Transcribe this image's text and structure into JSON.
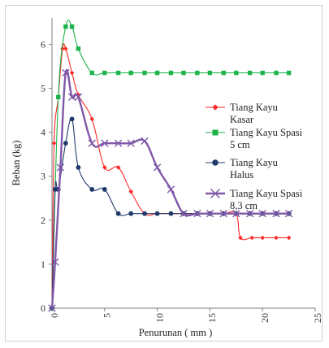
{
  "chart_data": {
    "type": "line",
    "xlabel": "Penurunan ( mm )",
    "ylabel": "Beban (kg)",
    "xlim": [
      0,
      25
    ],
    "ylim": [
      0,
      6.6
    ],
    "xticks": [
      0,
      5,
      10,
      15,
      20,
      25
    ],
    "yticks": [
      0,
      1,
      2,
      3,
      4,
      5,
      6
    ],
    "grid": false,
    "legend_position": "right",
    "series": [
      {
        "name": "Tiang Kayu Kasar",
        "color": "#ff2a2a",
        "marker": "diamond",
        "x": [
          0,
          0.2,
          0.6,
          1.0,
          1.3,
          1.9,
          2.5,
          3.8,
          5.0,
          6.3,
          7.5,
          8.8,
          10.0,
          11.3,
          12.5,
          13.8,
          15.0,
          16.3,
          17.5,
          17.9,
          19.0,
          20.0,
          21.3,
          22.5
        ],
        "y": [
          0,
          3.75,
          4.8,
          5.9,
          5.9,
          5.35,
          4.85,
          4.3,
          3.2,
          3.2,
          2.65,
          2.15,
          2.15,
          2.15,
          2.15,
          2.15,
          2.15,
          2.15,
          2.15,
          1.6,
          1.6,
          1.6,
          1.6,
          1.6
        ]
      },
      {
        "name": "Tiang Kayu Spasi 5 cm",
        "color": "#1db34a",
        "marker": "square",
        "x": [
          0,
          0.6,
          1.3,
          1.9,
          2.5,
          3.8,
          5.0,
          6.3,
          7.5,
          8.8,
          10.0,
          11.3,
          12.5,
          13.8,
          15.0,
          16.3,
          17.5,
          18.8,
          20.0,
          21.3,
          22.5
        ],
        "y": [
          0,
          4.8,
          6.4,
          6.4,
          5.9,
          5.35,
          5.35,
          5.35,
          5.35,
          5.35,
          5.35,
          5.35,
          5.35,
          5.35,
          5.35,
          5.35,
          5.35,
          5.35,
          5.35,
          5.35,
          5.35
        ]
      },
      {
        "name": "Tiang Kayu Halus",
        "color": "#1f3a6a",
        "marker": "circle",
        "x": [
          0,
          0.3,
          0.6,
          1.3,
          1.9,
          2.5,
          3.8,
          5.0,
          6.3,
          7.5,
          8.8,
          10.0,
          11.3,
          12.5,
          13.8,
          15.0,
          16.3,
          17.5,
          18.8,
          20.0,
          21.3,
          22.5
        ],
        "y": [
          0,
          2.7,
          2.7,
          3.75,
          4.3,
          3.2,
          2.7,
          2.7,
          2.15,
          2.15,
          2.15,
          2.15,
          2.15,
          2.15,
          2.15,
          2.15,
          2.15,
          2.15,
          2.15,
          2.15,
          2.15,
          2.15
        ]
      },
      {
        "name": "Tiang Kayu Spasi 8,3 cm",
        "color": "#8058a8",
        "marker": "x",
        "x": [
          0,
          0.3,
          0.8,
          1.3,
          1.9,
          2.5,
          3.8,
          5.0,
          6.3,
          7.5,
          8.8,
          10.0,
          11.3,
          12.5,
          13.8,
          15.0,
          16.3,
          17.5,
          18.8,
          20.0,
          21.3,
          22.5
        ],
        "y": [
          0,
          1.05,
          3.2,
          5.35,
          4.8,
          4.8,
          3.75,
          3.75,
          3.75,
          3.75,
          3.8,
          3.2,
          2.7,
          2.15,
          2.15,
          2.15,
          2.15,
          2.15,
          2.15,
          2.15,
          2.15,
          2.15
        ]
      }
    ],
    "legend_labels": [
      [
        "Tiang Kayu",
        "Kasar"
      ],
      [
        "Tiang Kayu Spasi",
        "5 cm"
      ],
      [
        " Tiang Kayu",
        "Halus"
      ],
      [
        "Tiang Kayu Spasi",
        "8,3 cm"
      ]
    ]
  }
}
